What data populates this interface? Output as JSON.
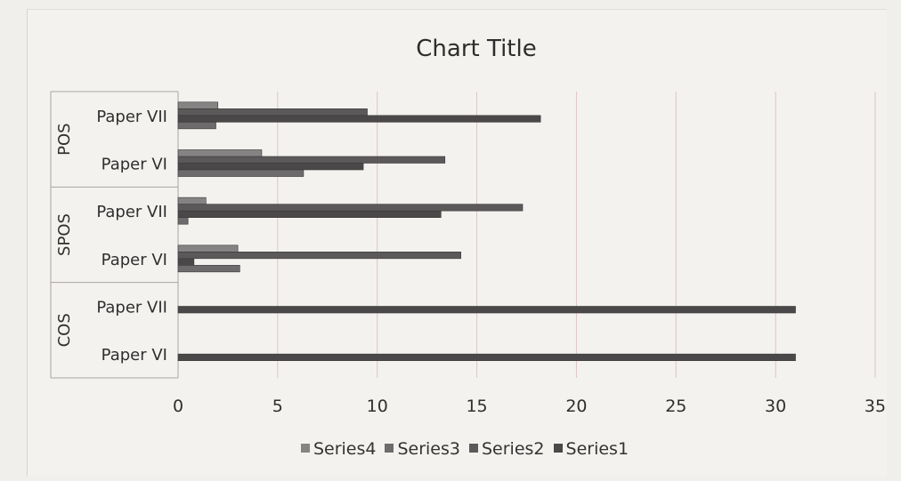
{
  "chart_data": {
    "type": "bar",
    "orientation": "horizontal",
    "stacked": false,
    "title": "Chart Title",
    "xlabel": "",
    "ylabel": "",
    "xlim": [
      0,
      35
    ],
    "ticks": [
      "0",
      "5",
      "10",
      "15",
      "20",
      "25",
      "30",
      "35"
    ],
    "groups": [
      {
        "name": "COS",
        "categories": [
          "Paper VI",
          "Paper VII"
        ]
      },
      {
        "name": "SPOS",
        "categories": [
          "Paper VI",
          "Paper VII"
        ]
      },
      {
        "name": "POS",
        "categories": [
          "Paper VI",
          "Paper VII"
        ]
      }
    ],
    "categories": [
      "COS Paper VI",
      "COS Paper VII",
      "SPOS Paper VI",
      "SPOS Paper VII",
      "POS Paper VI",
      "POS Paper VII"
    ],
    "series": [
      {
        "name": "Series1",
        "values": [
          31,
          31,
          0.8,
          13.2,
          9.3,
          18.2
        ]
      },
      {
        "name": "Series2",
        "values": [
          0,
          0,
          14.2,
          17.3,
          13.4,
          9.5
        ]
      },
      {
        "name": "Series3",
        "values": [
          0,
          0,
          3.1,
          0.5,
          6.3,
          1.9
        ]
      },
      {
        "name": "Series4",
        "values": [
          0,
          0,
          3.0,
          1.4,
          4.2,
          2.0
        ]
      }
    ],
    "legend": [
      "Series4",
      "Series3",
      "Series2",
      "Series1"
    ],
    "legend_position": "bottom",
    "grid": true,
    "colors": {
      "Series1": "#4a4848",
      "Series2": "#5b5959",
      "Series3": "#6d6b6b",
      "Series4": "#858383",
      "grid": "#dcc4c6",
      "axis": "#a9a4a4"
    }
  }
}
